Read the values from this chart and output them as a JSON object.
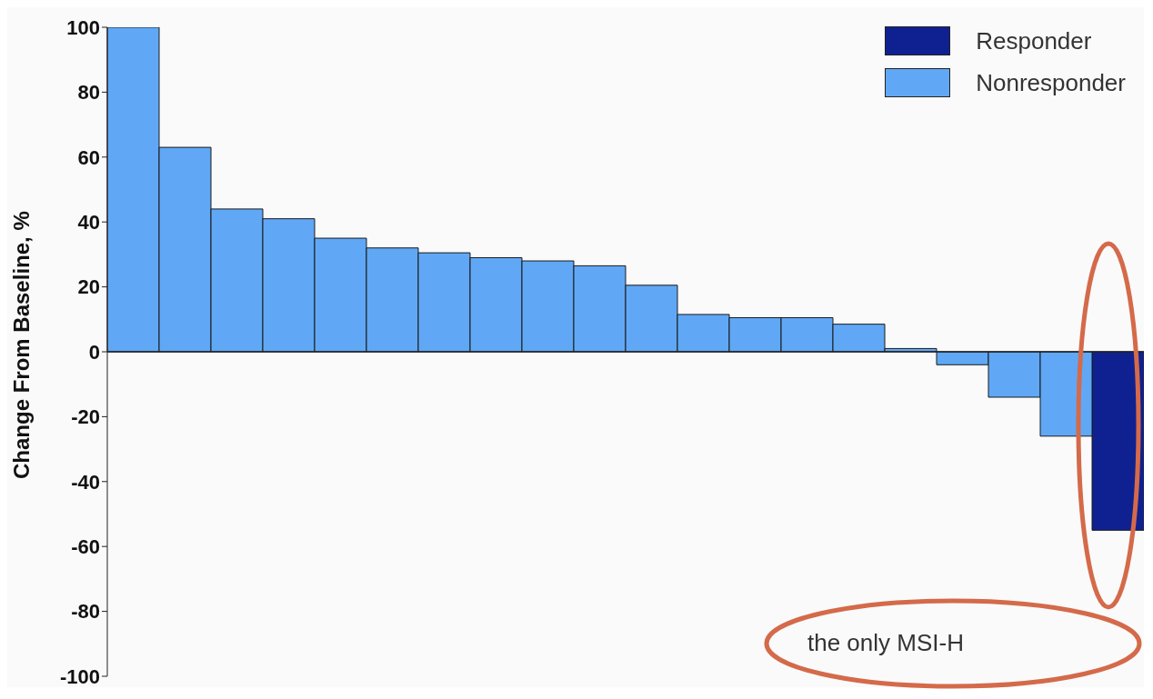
{
  "chart_data": {
    "type": "bar",
    "ylabel": "Change From Baseline, %",
    "categories": [
      null,
      null,
      null,
      null,
      null,
      null,
      null,
      null,
      null,
      null,
      null,
      null,
      null,
      null,
      null,
      null,
      null,
      null,
      null,
      null
    ],
    "series": [
      {
        "name": "Responder",
        "color": "#0f2191",
        "values": [
          null,
          null,
          null,
          null,
          null,
          null,
          null,
          null,
          null,
          null,
          null,
          null,
          null,
          null,
          null,
          null,
          null,
          null,
          null,
          -55
        ]
      },
      {
        "name": "Nonresponder",
        "color": "#60a8f6",
        "values": [
          100,
          63,
          44,
          41,
          35,
          32,
          30.5,
          29,
          28,
          26.5,
          20.5,
          11.5,
          10.5,
          10.5,
          8.5,
          1,
          -4,
          -14,
          -26,
          null
        ]
      }
    ],
    "stacked": true,
    "ylim": [
      -100,
      100
    ],
    "yticks": [
      -100,
      -80,
      -60,
      -40,
      -20,
      0,
      20,
      40,
      60,
      80,
      100
    ],
    "ref_lines": [
      {
        "axis": "y",
        "value": 0,
        "color": "#222222"
      }
    ],
    "tick_labels": "y",
    "legend": "top right",
    "annotations": [
      "the only MSI-H"
    ]
  }
}
